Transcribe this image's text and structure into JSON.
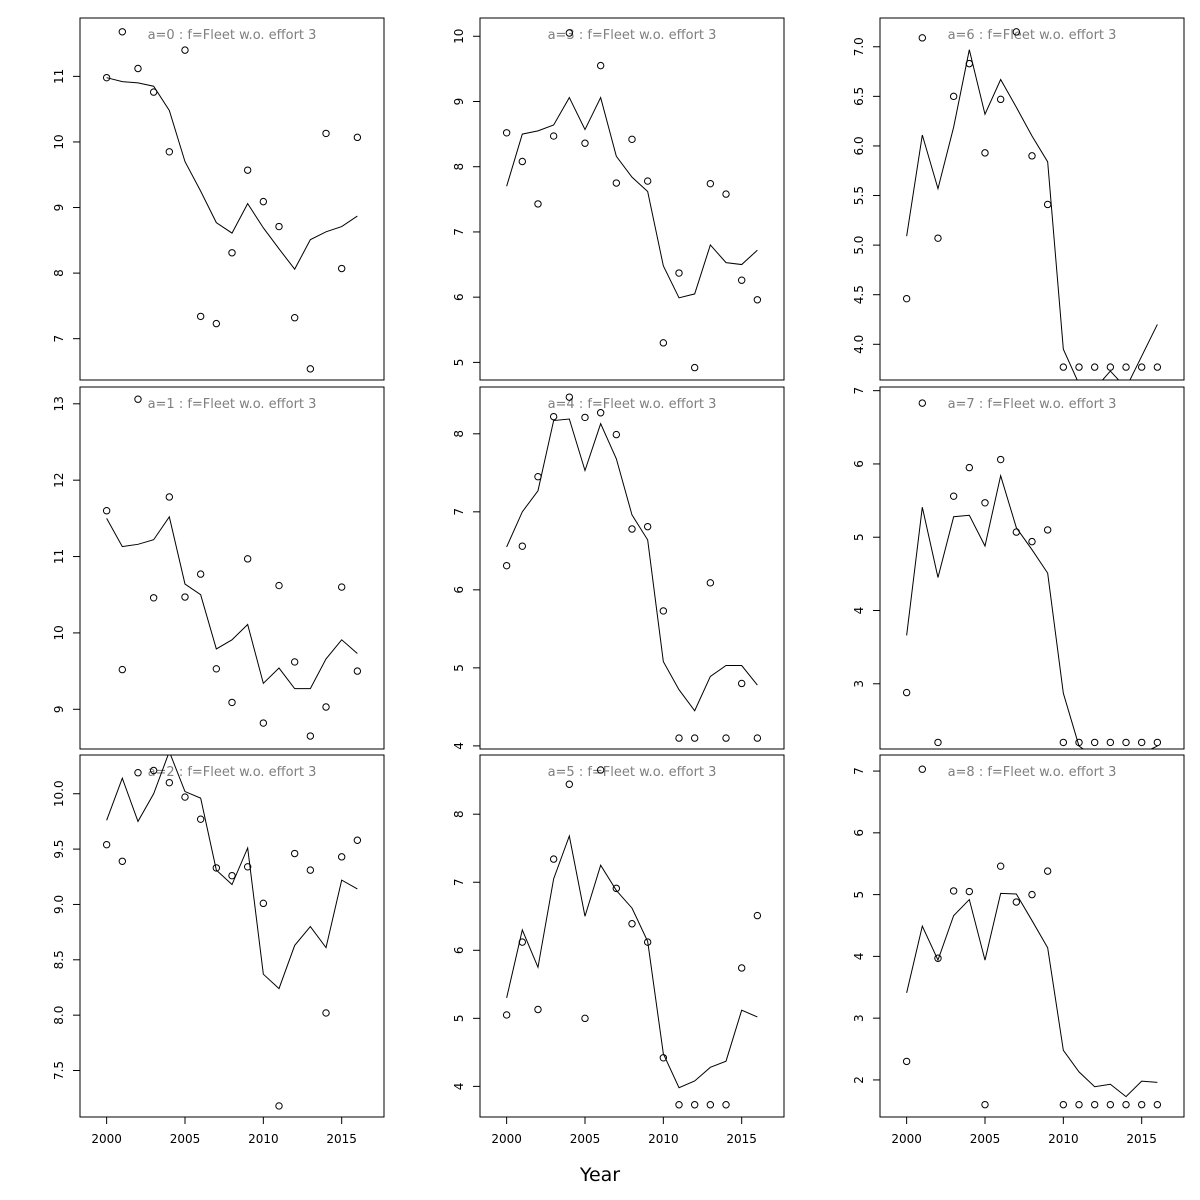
{
  "figure": {
    "xlabel": "Year"
  },
  "chart_data": [
    {
      "type": "line",
      "title": "a=0  :  f=Fleet w.o. effort 3",
      "x": [
        2000,
        2001,
        2002,
        2003,
        2004,
        2005,
        2006,
        2007,
        2008,
        2009,
        2010,
        2011,
        2012,
        2013,
        2014,
        2015,
        2016
      ],
      "xlim": [
        1998.3,
        2017.7
      ],
      "ylim": [
        6.37,
        11.89
      ],
      "xticks": [
        2000,
        2005,
        2010,
        2015
      ],
      "yticks": [
        7,
        8,
        9,
        10,
        11
      ],
      "series": [
        {
          "kind": "points",
          "values": [
            10.98,
            11.68,
            11.12,
            10.76,
            9.85,
            11.4,
            7.34,
            7.23,
            8.31,
            9.57,
            9.09,
            8.71,
            7.32,
            6.54,
            10.13,
            8.07,
            10.07
          ]
        },
        {
          "kind": "line",
          "values": [
            10.98,
            10.92,
            10.9,
            10.85,
            10.48,
            9.7,
            9.25,
            8.77,
            8.61,
            9.06,
            8.69,
            8.37,
            8.06,
            8.51,
            8.63,
            8.71,
            8.87
          ]
        }
      ]
    },
    {
      "type": "line",
      "title": "a=3  :  f=Fleet w.o. effort 3",
      "x": [
        2000,
        2001,
        2002,
        2003,
        2004,
        2005,
        2006,
        2007,
        2008,
        2009,
        2010,
        2011,
        2012,
        2013,
        2014,
        2015,
        2016
      ],
      "xlim": [
        1998.3,
        2017.7
      ],
      "ylim": [
        4.73,
        10.28
      ],
      "xticks": [
        2000,
        2005,
        2010,
        2015
      ],
      "yticks": [
        5,
        6,
        7,
        8,
        9,
        10
      ],
      "series": [
        {
          "kind": "points",
          "values": [
            8.52,
            8.08,
            7.43,
            8.47,
            10.05,
            8.36,
            9.55,
            7.75,
            8.42,
            7.78,
            5.3,
            6.37,
            4.92,
            7.74,
            7.58,
            6.26,
            5.96
          ]
        },
        {
          "kind": "line",
          "values": [
            7.7,
            8.5,
            8.55,
            8.64,
            9.06,
            8.57,
            9.06,
            8.16,
            7.84,
            7.62,
            6.48,
            5.99,
            6.05,
            6.8,
            6.53,
            6.5,
            6.72
          ]
        }
      ]
    },
    {
      "type": "line",
      "title": "a=6  :  f=Fleet w.o. effort 3",
      "x": [
        2000,
        2001,
        2002,
        2003,
        2004,
        2005,
        2006,
        2007,
        2008,
        2009,
        2010,
        2011,
        2012,
        2013,
        2014,
        2015,
        2016
      ],
      "xlim": [
        1998.3,
        2017.7
      ],
      "ylim": [
        3.64,
        7.29
      ],
      "xticks": [
        2000,
        2005,
        2010,
        2015
      ],
      "yticks": [
        4.0,
        4.5,
        5.0,
        5.5,
        6.0,
        6.5,
        7.0
      ],
      "series": [
        {
          "kind": "points",
          "values": [
            4.46,
            7.09,
            5.07,
            6.5,
            6.83,
            5.93,
            6.47,
            7.15,
            5.9,
            5.41,
            3.77,
            3.77,
            3.77,
            3.77,
            3.77,
            3.77,
            3.77
          ]
        },
        {
          "kind": "line",
          "values": [
            5.09,
            6.11,
            5.57,
            6.19,
            6.97,
            6.32,
            6.67,
            6.39,
            6.1,
            5.84,
            3.95,
            3.6,
            3.55,
            3.73,
            3.56,
            3.88,
            4.2
          ]
        }
      ]
    },
    {
      "type": "line",
      "title": "a=1  :  f=Fleet w.o. effort 3",
      "x": [
        2000,
        2001,
        2002,
        2003,
        2004,
        2005,
        2006,
        2007,
        2008,
        2009,
        2010,
        2011,
        2012,
        2013,
        2014,
        2015,
        2016
      ],
      "xlim": [
        1998.3,
        2017.7
      ],
      "ylim": [
        8.48,
        13.22
      ],
      "xticks": [
        2000,
        2005,
        2010,
        2015
      ],
      "yticks": [
        9,
        10,
        11,
        12,
        13
      ],
      "series": [
        {
          "kind": "points",
          "values": [
            11.6,
            9.52,
            13.06,
            10.46,
            11.78,
            10.47,
            10.77,
            9.53,
            9.09,
            10.97,
            8.82,
            10.62,
            9.62,
            8.65,
            9.03,
            10.6,
            9.5
          ]
        },
        {
          "kind": "line",
          "values": [
            11.5,
            11.13,
            11.16,
            11.22,
            11.52,
            10.64,
            10.5,
            9.79,
            9.91,
            10.11,
            9.34,
            9.54,
            9.27,
            9.27,
            9.66,
            9.91,
            9.73
          ]
        }
      ]
    },
    {
      "type": "line",
      "title": "a=4  :  f=Fleet w.o. effort 3",
      "x": [
        2000,
        2001,
        2002,
        2003,
        2004,
        2005,
        2006,
        2007,
        2008,
        2009,
        2010,
        2011,
        2012,
        2013,
        2014,
        2015,
        2016
      ],
      "xlim": [
        1998.3,
        2017.7
      ],
      "ylim": [
        3.96,
        8.6
      ],
      "xticks": [
        2000,
        2005,
        2010,
        2015
      ],
      "yticks": [
        4,
        5,
        6,
        7,
        8
      ],
      "series": [
        {
          "kind": "points",
          "values": [
            6.31,
            6.56,
            7.45,
            8.22,
            8.47,
            8.21,
            8.27,
            7.99,
            6.78,
            6.81,
            5.73,
            4.1,
            4.1,
            6.09,
            4.1,
            4.8,
            4.1
          ]
        },
        {
          "kind": "line",
          "values": [
            6.55,
            7.0,
            7.27,
            8.17,
            8.19,
            7.53,
            8.13,
            7.68,
            6.96,
            6.64,
            5.08,
            4.72,
            4.45,
            4.89,
            5.03,
            5.03,
            4.78
          ]
        }
      ]
    },
    {
      "type": "line",
      "title": "a=7  :  f=Fleet w.o. effort 3",
      "x": [
        2000,
        2001,
        2002,
        2003,
        2004,
        2005,
        2006,
        2007,
        2008,
        2009,
        2010,
        2011,
        2012,
        2013,
        2014,
        2015,
        2016
      ],
      "xlim": [
        1998.3,
        2017.7
      ],
      "ylim": [
        2.11,
        7.05
      ],
      "xticks": [
        2000,
        2005,
        2010,
        2015
      ],
      "yticks": [
        3,
        4,
        5,
        6,
        7
      ],
      "series": [
        {
          "kind": "points",
          "values": [
            2.88,
            6.83,
            2.2,
            5.56,
            5.95,
            5.47,
            6.06,
            5.07,
            4.94,
            5.1,
            2.2,
            2.2,
            2.2,
            2.2,
            2.2,
            2.2,
            2.2
          ]
        },
        {
          "kind": "line",
          "values": [
            3.66,
            5.41,
            4.45,
            5.28,
            5.3,
            4.88,
            5.84,
            5.13,
            4.83,
            4.51,
            2.87,
            2.15,
            2.0,
            2.0,
            2.0,
            2.05,
            2.15
          ]
        }
      ]
    },
    {
      "type": "line",
      "title": "a=2  :  f=Fleet w.o. effort 3",
      "x": [
        2000,
        2001,
        2002,
        2003,
        2004,
        2005,
        2006,
        2007,
        2008,
        2009,
        2010,
        2011,
        2012,
        2013,
        2014,
        2015,
        2016
      ],
      "xlim": [
        1998.3,
        2017.7
      ],
      "ylim": [
        7.08,
        10.35
      ],
      "xticks": [
        2000,
        2005,
        2010,
        2015
      ],
      "yticks": [
        7.5,
        8.0,
        8.5,
        9.0,
        9.5,
        10.0
      ],
      "series": [
        {
          "kind": "points",
          "values": [
            9.54,
            9.39,
            10.19,
            10.21,
            10.1,
            9.97,
            9.77,
            9.33,
            9.26,
            9.34,
            9.01,
            7.18,
            9.46,
            9.31,
            8.02,
            9.43,
            9.58
          ]
        },
        {
          "kind": "line",
          "values": [
            9.76,
            10.14,
            9.75,
            10.0,
            10.38,
            10.02,
            9.96,
            9.31,
            9.18,
            9.51,
            8.37,
            8.24,
            8.63,
            8.8,
            8.61,
            9.22,
            9.14
          ]
        }
      ]
    },
    {
      "type": "line",
      "title": "a=5  :  f=Fleet w.o. effort 3",
      "x": [
        2000,
        2001,
        2002,
        2003,
        2004,
        2005,
        2006,
        2007,
        2008,
        2009,
        2010,
        2011,
        2012,
        2013,
        2014,
        2015,
        2016
      ],
      "xlim": [
        1998.3,
        2017.7
      ],
      "ylim": [
        3.55,
        8.87
      ],
      "xticks": [
        2000,
        2005,
        2010,
        2015
      ],
      "yticks": [
        4,
        5,
        6,
        7,
        8
      ],
      "series": [
        {
          "kind": "points",
          "values": [
            5.05,
            6.12,
            5.13,
            7.34,
            8.44,
            5.0,
            8.65,
            6.91,
            6.39,
            6.12,
            4.42,
            3.73,
            3.73,
            3.73,
            3.73,
            5.74,
            6.51
          ]
        },
        {
          "kind": "line",
          "values": [
            5.3,
            6.3,
            5.75,
            7.05,
            7.68,
            6.5,
            7.25,
            6.88,
            6.62,
            6.13,
            4.48,
            3.98,
            4.08,
            4.28,
            4.37,
            5.12,
            5.02
          ]
        }
      ]
    },
    {
      "type": "line",
      "title": "a=8  :  f=Fleet w.o. effort 3",
      "x": [
        2000,
        2001,
        2002,
        2003,
        2004,
        2005,
        2006,
        2007,
        2008,
        2009,
        2010,
        2011,
        2012,
        2013,
        2014,
        2015,
        2016
      ],
      "xlim": [
        1998.3,
        2017.7
      ],
      "ylim": [
        1.4,
        7.26
      ],
      "xticks": [
        2000,
        2005,
        2010,
        2015
      ],
      "yticks": [
        2,
        3,
        4,
        5,
        6,
        7
      ],
      "series": [
        {
          "kind": "points",
          "values": [
            2.3,
            7.03,
            3.97,
            5.06,
            5.05,
            1.6,
            5.46,
            4.88,
            5.0,
            5.38,
            1.6,
            1.6,
            1.6,
            1.6,
            1.6,
            1.6,
            1.6
          ]
        },
        {
          "kind": "line",
          "values": [
            3.41,
            4.49,
            3.94,
            4.66,
            4.92,
            3.94,
            5.02,
            5.01,
            4.58,
            4.14,
            2.48,
            2.13,
            1.89,
            1.93,
            1.73,
            1.98,
            1.96
          ]
        }
      ]
    }
  ]
}
